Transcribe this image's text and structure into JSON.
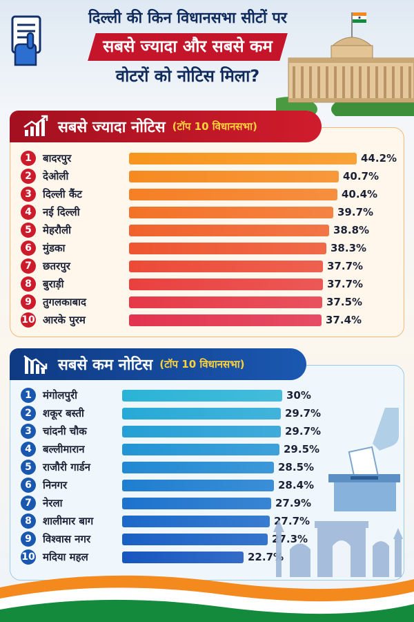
{
  "header": {
    "title_line1": "दिल्ली की किन विधानसभा सीटों पर",
    "title_line2": "सबसे ज्यादा और सबसे कम",
    "title_line3": "वोटरों को नोटिस मिला?"
  },
  "colors": {
    "navy": "#0f2b5c",
    "red": "#c4152a",
    "gold": "#ffd23c",
    "saffron": "#f48a1e",
    "green": "#138a3c"
  },
  "chart_data": [
    {
      "type": "bar",
      "title": "सबसे ज्यादा नोटिस",
      "subtitle": "(टॉप 10 विधानसभा)",
      "ranks": [
        "1",
        "2",
        "3",
        "4",
        "5",
        "6",
        "7",
        "8",
        "9",
        "10"
      ],
      "categories": [
        "बादरपुर",
        "देओली",
        "दिल्ली कैंट",
        "नई दिल्ली",
        "मेहरौली",
        "मुंडका",
        "छतरपुर",
        "बुराड़ी",
        "तुगलकाबाद",
        "आरके पुरम"
      ],
      "values": [
        44.2,
        40.7,
        40.4,
        39.7,
        38.8,
        38.3,
        37.7,
        37.7,
        37.5,
        37.4
      ],
      "value_labels": [
        "44.2%",
        "40.7%",
        "40.4%",
        "39.7%",
        "38.8%",
        "38.3%",
        "37.7%",
        "37.7%",
        "37.5%",
        "37.4%"
      ],
      "orientation": "horizontal",
      "grid": false,
      "bar_colors": [
        "#f7951d",
        "#f68a21",
        "#f57f25",
        "#f37228",
        "#f0622c",
        "#ee5530",
        "#ec4a37",
        "#e9403f",
        "#e63947",
        "#e2334f"
      ],
      "rank_colors": [
        "#cc1b2b",
        "#cc1b2b",
        "#cc1b2b",
        "#cc1b2b",
        "#cc1b2b",
        "#cc1b2b",
        "#cc1b2b",
        "#cc1b2b",
        "#cc1b2b",
        "#cc1b2b"
      ]
    },
    {
      "type": "bar",
      "title": "सबसे कम नोटिस",
      "subtitle": "(टॉप 10 विधानसभा)",
      "ranks": [
        "1",
        "2",
        "3",
        "4",
        "5",
        "6",
        "7",
        "8",
        "9",
        "10"
      ],
      "categories": [
        "मंगोलपुरी",
        "शकूर बस्ती",
        "चांदनी चौक",
        "बल्लीमारान",
        "राजौरी गार्डन",
        "निनगर",
        "नेरला",
        "शालीमार बाग",
        "विश्वास नगर",
        "मदिया महल"
      ],
      "values": [
        30,
        29.7,
        29.7,
        29.5,
        28.5,
        28.4,
        27.9,
        27.7,
        27.3,
        22.7
      ],
      "value_labels": [
        "30%",
        "29.7%",
        "29.7%",
        "29.5%",
        "28.5%",
        "28.4%",
        "27.9%",
        "27.7%",
        "27.3%",
        "22.7%"
      ],
      "orientation": "horizontal",
      "grid": false,
      "bar_colors": [
        "#2ab3d6",
        "#27a9d6",
        "#259fd5",
        "#2394d4",
        "#2189d2",
        "#1f7ed0",
        "#1d73cd",
        "#1b69c9",
        "#1960c4",
        "#1756bf"
      ],
      "rank_colors": [
        "#1a58b0",
        "#1a58b0",
        "#1a58b0",
        "#1a58b0",
        "#1a58b0",
        "#1a58b0",
        "#1a58b0",
        "#1a58b0",
        "#1a58b0",
        "#1a58b0"
      ]
    }
  ]
}
